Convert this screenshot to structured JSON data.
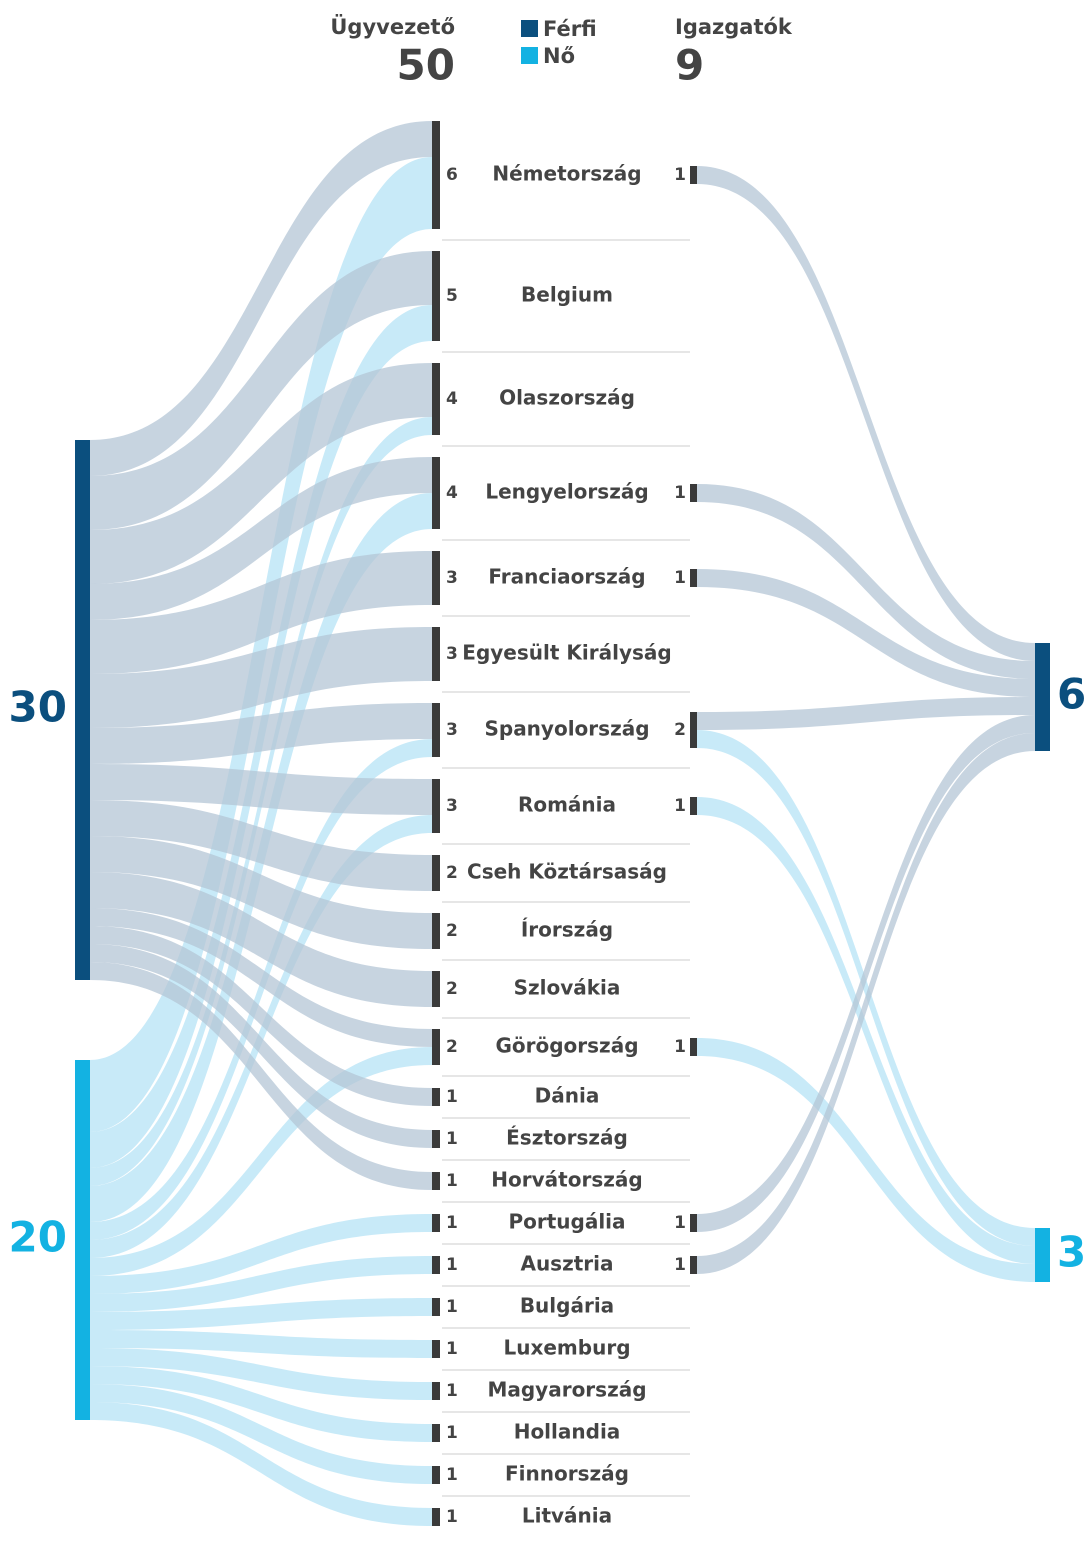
{
  "chart_data": {
    "type": "sankey",
    "left_title": "Ügyvezető",
    "left_total": 50,
    "right_title": "Igazgatók",
    "right_total": 9,
    "series": [
      {
        "name": "Férfi",
        "color": "#0b4f7e",
        "link_color": "#b4c6d6",
        "total": 30,
        "director_total": 6
      },
      {
        "name": "Nő",
        "color": "#13b2e2",
        "link_color": "#b5e3f6",
        "total": 20,
        "director_total": 3
      }
    ],
    "countries": [
      {
        "name": "Németország",
        "value": 6,
        "by_gender": [
          2,
          4
        ],
        "directors": 1,
        "directors_by_gender": [
          1,
          0
        ]
      },
      {
        "name": "Belgium",
        "value": 5,
        "by_gender": [
          3,
          2
        ]
      },
      {
        "name": "Olaszország",
        "value": 4,
        "by_gender": [
          3,
          1
        ]
      },
      {
        "name": "Lengyelország",
        "value": 4,
        "by_gender": [
          2,
          2
        ],
        "directors": 1,
        "directors_by_gender": [
          1,
          0
        ]
      },
      {
        "name": "Franciaország",
        "value": 3,
        "by_gender": [
          3,
          0
        ],
        "directors": 1,
        "directors_by_gender": [
          1,
          0
        ]
      },
      {
        "name": "Egyesült Királyság",
        "value": 3,
        "by_gender": [
          3,
          0
        ]
      },
      {
        "name": "Spanyolország",
        "value": 3,
        "by_gender": [
          2,
          1
        ],
        "directors": 2,
        "directors_by_gender": [
          1,
          1
        ]
      },
      {
        "name": "Románia",
        "value": 3,
        "by_gender": [
          2,
          1
        ],
        "directors": 1,
        "directors_by_gender": [
          0,
          1
        ]
      },
      {
        "name": "Cseh Köztársaság",
        "value": 2,
        "by_gender": [
          2,
          0
        ]
      },
      {
        "name": "Írország",
        "value": 2,
        "by_gender": [
          2,
          0
        ]
      },
      {
        "name": "Szlovákia",
        "value": 2,
        "by_gender": [
          2,
          0
        ]
      },
      {
        "name": "Görögország",
        "value": 2,
        "by_gender": [
          1,
          1
        ],
        "directors": 1,
        "directors_by_gender": [
          0,
          1
        ]
      },
      {
        "name": "Dánia",
        "value": 1,
        "by_gender": [
          1,
          0
        ]
      },
      {
        "name": "Észtország",
        "value": 1,
        "by_gender": [
          1,
          0
        ]
      },
      {
        "name": "Horvátország",
        "value": 1,
        "by_gender": [
          1,
          0
        ]
      },
      {
        "name": "Portugália",
        "value": 1,
        "by_gender": [
          0,
          1
        ],
        "directors": 1,
        "directors_by_gender": [
          1,
          0
        ]
      },
      {
        "name": "Ausztria",
        "value": 1,
        "by_gender": [
          0,
          1
        ],
        "directors": 1,
        "directors_by_gender": [
          1,
          0
        ]
      },
      {
        "name": "Bulgária",
        "value": 1,
        "by_gender": [
          0,
          1
        ]
      },
      {
        "name": "Luxemburg",
        "value": 1,
        "by_gender": [
          0,
          1
        ]
      },
      {
        "name": "Magyarország",
        "value": 1,
        "by_gender": [
          0,
          1
        ]
      },
      {
        "name": "Hollandia",
        "value": 1,
        "by_gender": [
          0,
          1
        ]
      },
      {
        "name": "Finnország",
        "value": 1,
        "by_gender": [
          0,
          1
        ]
      },
      {
        "name": "Litvánia",
        "value": 1,
        "by_gender": [
          0,
          1
        ]
      }
    ]
  }
}
